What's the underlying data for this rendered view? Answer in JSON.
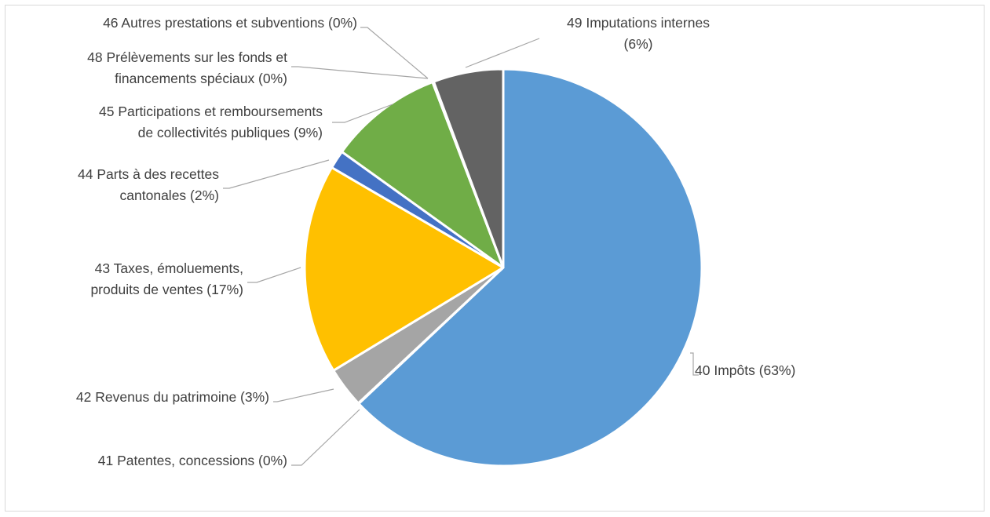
{
  "chart_data": {
    "type": "pie",
    "title": "",
    "slices": [
      {
        "label": "40 Impôts (63%)",
        "lines": [
          "40 Impôts (63%)"
        ],
        "value": 63.0,
        "color": "#5b9bd5"
      },
      {
        "label": "41 Patentes, concessions (0%)",
        "lines": [
          "41 Patentes, concessions (0%)"
        ],
        "value": 0.05,
        "color": "#ed7d31"
      },
      {
        "label": "42 Revenus du patrimoine (3%)",
        "lines": [
          "42 Revenus du patrimoine (3%)"
        ],
        "value": 3.3,
        "color": "#a5a5a5"
      },
      {
        "label": "43 Taxes, émoluements, produits de ventes (17%)",
        "lines": [
          "43 Taxes, émoluements,",
          "produits de ventes (17%)"
        ],
        "value": 17.1,
        "color": "#ffc000"
      },
      {
        "label": "44 Parts à des recettes cantonales (2%)",
        "lines": [
          "44 Parts à des recettes",
          "cantonales (2%)"
        ],
        "value": 1.5,
        "color": "#4472c4"
      },
      {
        "label": "45 Participations et remboursements de collectivités publiques (9%)",
        "lines": [
          "45 Participations et remboursements",
          "de collectivités publiques (9%)"
        ],
        "value": 9.3,
        "color": "#70ad47"
      },
      {
        "label": "46 Autres prestations et subventions (0%)",
        "lines": [
          "46 Autres prestations et subventions (0%)"
        ],
        "value": 0.05,
        "color": "#264478"
      },
      {
        "label": "48 Prélèvements sur les fonds et financements spéciaux (0%)",
        "lines": [
          "48 Prélèvements sur les fonds et",
          "financements spéciaux (0%)"
        ],
        "value": 0.05,
        "color": "#9e480e"
      },
      {
        "label": "49 Imputations internes (6%)",
        "lines": [
          "49 Imputations internes",
          "(6%)"
        ],
        "value": 5.7,
        "color": "#636363"
      }
    ],
    "start_angle_deg": 0,
    "direction": "clockwise",
    "legend": "none"
  }
}
